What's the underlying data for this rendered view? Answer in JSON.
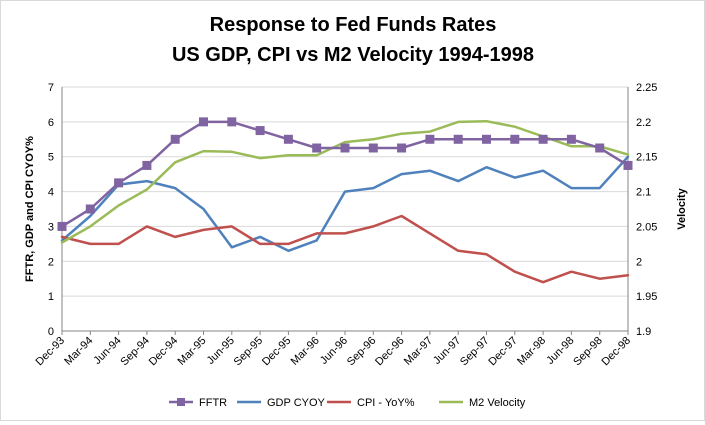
{
  "chart_data": {
    "type": "line",
    "title": [
      "Response to Fed Funds Rates",
      "US GDP, CPI vs M2 Velocity 1994-1998"
    ],
    "ylabel": "FFTR, GDP and CPI CYOY%",
    "y2label": "Velocity",
    "ylim": [
      0,
      7
    ],
    "y2lim": [
      1.9,
      2.25
    ],
    "yticks": [
      "0",
      "1",
      "2",
      "3",
      "4",
      "5",
      "6",
      "7"
    ],
    "y2ticks": [
      "1.9",
      "1.95",
      "2",
      "2.05",
      "2.1",
      "2.15",
      "2.2",
      "2.25"
    ],
    "xticks": [
      "Dec-93",
      "Mar-94",
      "Jun-94",
      "Sep-94",
      "Dec-94",
      "Mar-95",
      "Jun-95",
      "Sep-95",
      "Dec-95",
      "Mar-96",
      "Jun-96",
      "Sep-96",
      "Dec-96",
      "Mar-97",
      "Jun-97",
      "Sep-97",
      "Dec-97",
      "Mar-98",
      "Jun-98",
      "Sep-98",
      "Dec-98"
    ],
    "grid": "horizontal",
    "legend_position": "bottom",
    "series": [
      {
        "name": "FFTR",
        "axis": "left",
        "color": "#8064A2",
        "marker": "square",
        "values": [
          3.0,
          3.5,
          4.25,
          4.75,
          5.5,
          6.0,
          6.0,
          5.75,
          5.5,
          5.25,
          5.25,
          5.25,
          5.25,
          5.5,
          5.5,
          5.5,
          5.5,
          5.5,
          5.5,
          5.25,
          4.75
        ]
      },
      {
        "name": "GDP CYOY",
        "axis": "left",
        "color": "#4F81BD",
        "marker": "none",
        "values": [
          2.6,
          3.3,
          4.2,
          4.3,
          4.1,
          3.5,
          2.4,
          2.7,
          2.3,
          2.6,
          4.0,
          4.1,
          4.5,
          4.6,
          4.3,
          4.7,
          4.4,
          4.6,
          4.1,
          4.1,
          5.0
        ]
      },
      {
        "name": "CPI - YoY%",
        "axis": "left",
        "color": "#C0504D",
        "marker": "none",
        "values": [
          2.7,
          2.5,
          2.5,
          3.0,
          2.7,
          2.9,
          3.0,
          2.5,
          2.5,
          2.8,
          2.8,
          3.0,
          3.3,
          2.8,
          2.3,
          2.2,
          1.7,
          1.4,
          1.7,
          1.5,
          1.6
        ]
      },
      {
        "name": "M2 Velocity",
        "axis": "right",
        "color": "#9BBB59",
        "marker": "none",
        "values": [
          2.027,
          2.05,
          2.08,
          2.103,
          2.142,
          2.158,
          2.157,
          2.148,
          2.152,
          2.152,
          2.171,
          2.175,
          2.183,
          2.186,
          2.2,
          2.201,
          2.193,
          2.179,
          2.165,
          2.165,
          2.153
        ]
      }
    ]
  }
}
